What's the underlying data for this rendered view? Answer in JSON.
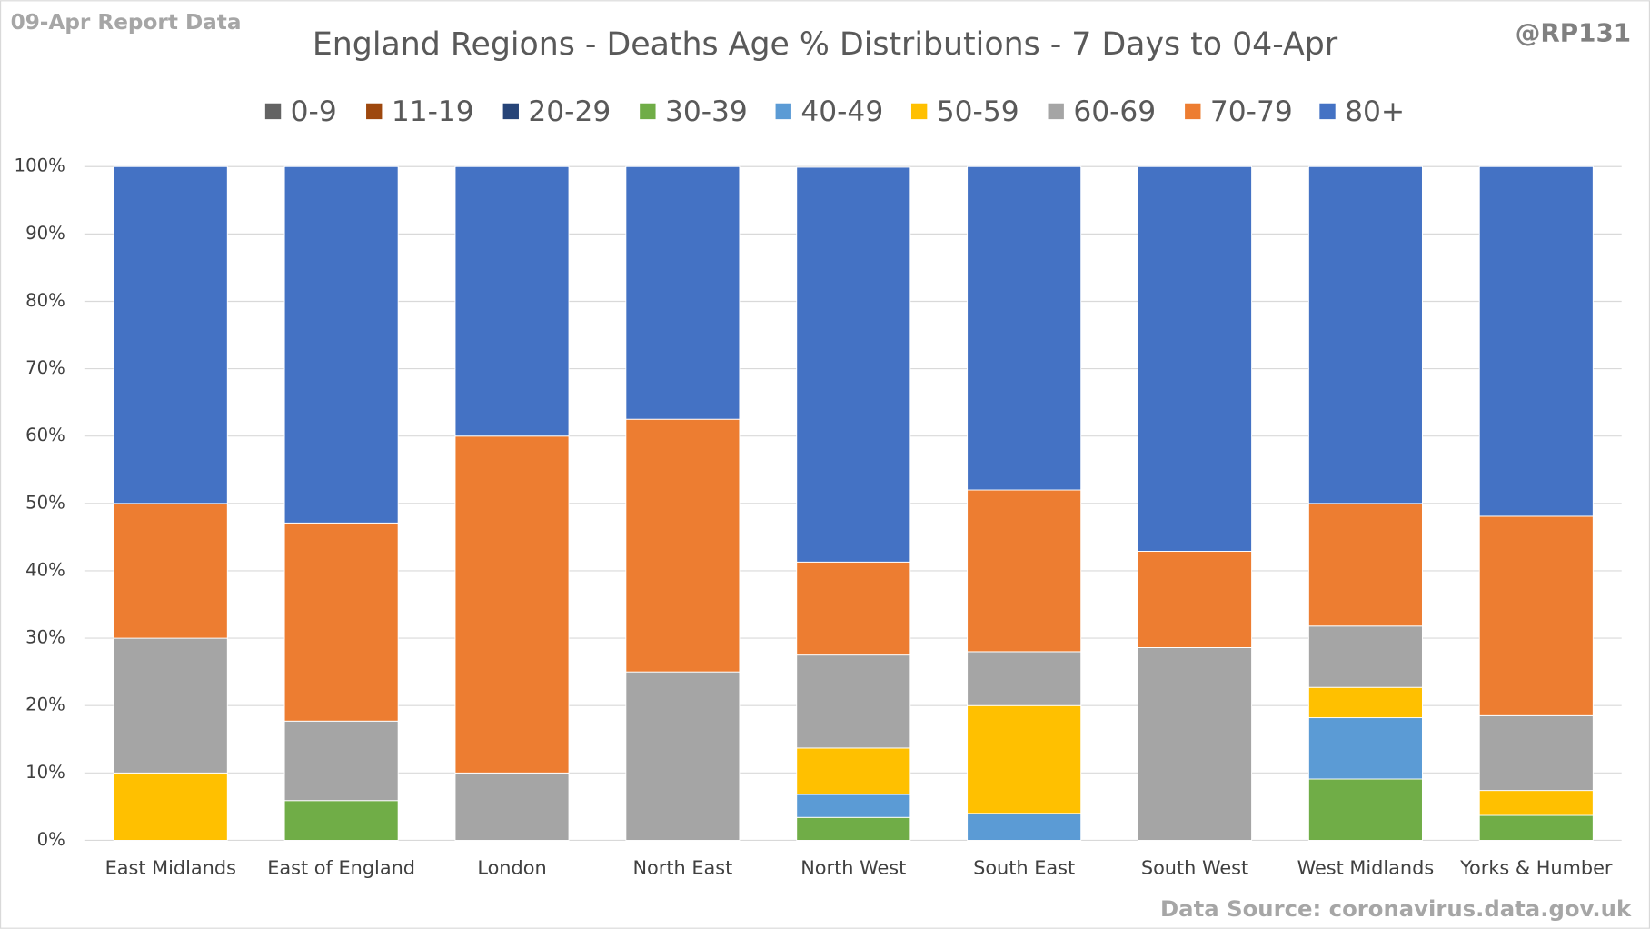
{
  "chart_data": {
    "type": "stacked_bar",
    "title": "England Regions - Deaths Age % Distributions - 7 Days to 04-Apr",
    "subtitle": "09-Apr Report Data",
    "annotations": [
      "@RP131",
      "Data Source: coronavirus.data.gov.uk"
    ],
    "categories": [
      "East Midlands",
      "East of England",
      "London",
      "North East",
      "North West",
      "South East",
      "South West",
      "West Midlands",
      "Yorks & Humber"
    ],
    "series": [
      {
        "name": "0-9",
        "color": "#636363",
        "values": [
          0,
          0,
          0,
          0,
          0,
          0,
          0,
          0,
          0
        ]
      },
      {
        "name": "11-19",
        "color": "#9e480e",
        "values": [
          0,
          0,
          0,
          0,
          0,
          0,
          0,
          0,
          0
        ]
      },
      {
        "name": "20-29",
        "color": "#264478",
        "values": [
          0,
          0,
          0,
          0,
          0,
          0,
          0,
          0,
          0
        ]
      },
      {
        "name": "30-39",
        "color": "#70ad47",
        "values": [
          0,
          5.9,
          0,
          0,
          3.4,
          0,
          0,
          9.1,
          3.7
        ]
      },
      {
        "name": "40-49",
        "color": "#5b9bd5",
        "values": [
          0,
          0,
          0,
          0,
          3.4,
          4,
          0,
          9.1,
          0
        ]
      },
      {
        "name": "50-59",
        "color": "#ffc000",
        "values": [
          10,
          0,
          0,
          0,
          6.9,
          16,
          0,
          4.5,
          3.7
        ]
      },
      {
        "name": "60-69",
        "color": "#a5a5a5",
        "values": [
          20,
          11.8,
          10,
          25,
          13.8,
          8,
          28.6,
          9.1,
          11.1
        ]
      },
      {
        "name": "70-79",
        "color": "#ed7d31",
        "values": [
          20,
          29.4,
          50,
          37.5,
          13.8,
          24,
          14.3,
          18.2,
          29.6
        ]
      },
      {
        "name": "80+",
        "color": "#4472c4",
        "values": [
          50,
          52.9,
          40,
          37.5,
          58.6,
          48,
          57.1,
          50,
          51.9
        ]
      }
    ],
    "ylim": [
      0,
      100
    ],
    "yticks": [
      {
        "value": 0,
        "label": "0%"
      },
      {
        "value": 10,
        "label": "10%"
      },
      {
        "value": 20,
        "label": "20%"
      },
      {
        "value": 30,
        "label": "30%"
      },
      {
        "value": 40,
        "label": "40%"
      },
      {
        "value": 50,
        "label": "50%"
      },
      {
        "value": 60,
        "label": "60%"
      },
      {
        "value": 70,
        "label": "70%"
      },
      {
        "value": 80,
        "label": "80%"
      },
      {
        "value": 90,
        "label": "90%"
      },
      {
        "value": 100,
        "label": "100%"
      }
    ],
    "grid": true,
    "legend": "top"
  }
}
